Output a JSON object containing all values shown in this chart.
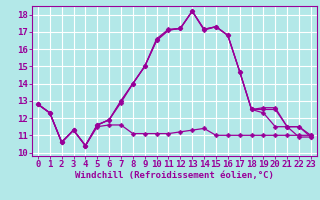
{
  "xlabel": "Windchill (Refroidissement éolien,°C)",
  "background_color": "#b3e8e8",
  "line_color": "#990099",
  "grid_color": "#ffffff",
  "x_values": [
    0,
    1,
    2,
    3,
    4,
    5,
    6,
    7,
    8,
    9,
    10,
    11,
    12,
    13,
    14,
    15,
    16,
    17,
    18,
    19,
    20,
    21,
    22,
    23
  ],
  "series": [
    [
      12.8,
      12.3,
      10.6,
      11.3,
      10.4,
      11.5,
      11.6,
      11.6,
      11.1,
      11.1,
      11.1,
      11.1,
      11.2,
      11.3,
      11.4,
      11.0,
      11.0,
      11.0,
      11.0,
      11.0,
      11.0,
      11.0,
      11.0,
      11.0
    ],
    [
      12.8,
      12.3,
      10.6,
      11.3,
      10.4,
      11.6,
      11.9,
      13.0,
      14.0,
      15.0,
      16.5,
      17.1,
      17.2,
      18.2,
      17.1,
      17.3,
      16.8,
      14.7,
      12.5,
      12.3,
      11.5,
      11.5,
      10.9,
      10.9
    ],
    [
      12.8,
      12.3,
      10.6,
      11.3,
      10.4,
      11.6,
      11.9,
      13.0,
      14.0,
      15.0,
      16.5,
      17.1,
      17.2,
      18.2,
      17.15,
      17.3,
      16.8,
      14.7,
      12.5,
      12.5,
      12.5,
      11.5,
      11.5,
      10.9
    ],
    [
      12.8,
      12.3,
      10.6,
      11.3,
      10.4,
      11.6,
      11.9,
      12.9,
      14.0,
      15.0,
      16.6,
      17.15,
      17.2,
      18.2,
      17.15,
      17.3,
      16.8,
      14.7,
      12.5,
      12.6,
      12.6,
      11.5,
      11.5,
      11.0
    ]
  ],
  "ylim": [
    9.8,
    18.5
  ],
  "xlim": [
    -0.5,
    23.5
  ],
  "yticks": [
    10,
    11,
    12,
    13,
    14,
    15,
    16,
    17,
    18
  ],
  "xticks": [
    0,
    1,
    2,
    3,
    4,
    5,
    6,
    7,
    8,
    9,
    10,
    11,
    12,
    13,
    14,
    15,
    16,
    17,
    18,
    19,
    20,
    21,
    22,
    23
  ],
  "markersize": 2.5,
  "linewidth": 0.9,
  "fontsize_xlabel": 6.5,
  "fontsize_ticks": 6.5
}
